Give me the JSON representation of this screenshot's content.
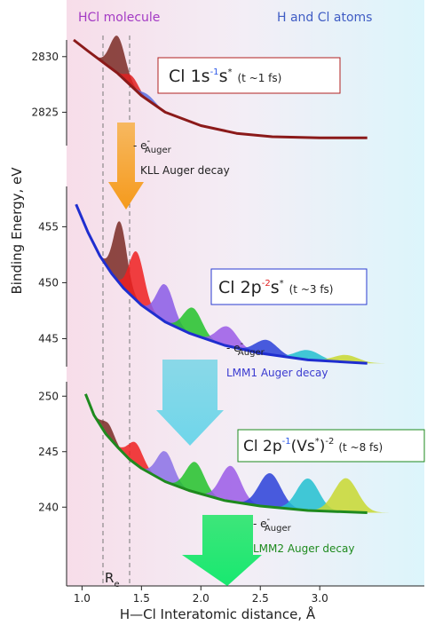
{
  "header": {
    "left_region": "HCl molecule",
    "right_region": "H and Cl atoms"
  },
  "chart_data": [
    {
      "type": "line",
      "xlim": [
        0.87,
        3.88
      ],
      "ylim": [
        2822,
        2831.5
      ],
      "yticks": [
        2825,
        2830
      ],
      "series": [
        {
          "color": "#8b1a1a",
          "x": [
            0.93,
            1.05,
            1.2,
            1.3,
            1.4,
            1.5,
            1.7,
            2.0,
            2.3,
            2.6,
            3.0,
            3.4
          ],
          "values": [
            2831.5,
            2830.5,
            2829.3,
            2828.5,
            2827.5,
            2826.5,
            2825.0,
            2823.8,
            2823.1,
            2822.8,
            2822.7,
            2822.7
          ]
        }
      ],
      "state": [
        "Cl 1s",
        "-1",
        "s",
        "*",
        "(t ~1 fs)"
      ],
      "auger": [
        "- e",
        "-",
        "Auger",
        "KLL Auger decay"
      ]
    },
    {
      "type": "line",
      "xlim": [
        0.87,
        3.88
      ],
      "ylim": [
        442.5,
        458.6
      ],
      "yticks": [
        445,
        450,
        455
      ],
      "ylabel": "Binding Energy, eV",
      "series": [
        {
          "color": "#1f2ecf",
          "x": [
            0.95,
            1.05,
            1.15,
            1.25,
            1.35,
            1.5,
            1.7,
            1.9,
            2.2,
            2.5,
            2.9,
            3.4
          ],
          "values": [
            457.0,
            454.5,
            452.4,
            450.8,
            449.5,
            448.0,
            446.5,
            445.5,
            444.4,
            443.7,
            443.1,
            442.8
          ]
        }
      ],
      "state": [
        "Cl 2p",
        "-2",
        "s",
        "*",
        "(t ~3 fs)"
      ],
      "auger": [
        "- e",
        "-",
        "Auger",
        "LMM1 Auger decay"
      ]
    },
    {
      "type": "line",
      "xlim": [
        0.87,
        3.88
      ],
      "ylim": [
        232.9,
        251.3
      ],
      "yticks": [
        240,
        245,
        250
      ],
      "xticks": [
        {
          "value": 1,
          "label": "1.0"
        },
        {
          "value": 1.5,
          "label": "1.5"
        },
        {
          "value": 2,
          "label": "2.0"
        },
        {
          "value": 2.5,
          "label": "2.5"
        },
        {
          "value": 3,
          "label": "3.0"
        }
      ],
      "xlabel": "H—Cl Interatomic distance, Å",
      "re_label": [
        "R",
        "e"
      ],
      "series": [
        {
          "color": "#1e8a1e",
          "x": [
            1.03,
            1.1,
            1.2,
            1.3,
            1.4,
            1.5,
            1.7,
            1.9,
            2.2,
            2.5,
            2.9,
            3.4
          ],
          "values": [
            250.2,
            248.3,
            246.6,
            245.4,
            244.3,
            243.5,
            242.3,
            241.5,
            240.6,
            240.1,
            239.7,
            239.5
          ]
        }
      ],
      "state": [
        "Cl 2p",
        "-1",
        "(Vs",
        "*",
        ")",
        "-2",
        "(t ~8 fs)"
      ],
      "auger": [
        "- e",
        "-",
        "Auger",
        "LMM2 Auger decay"
      ]
    }
  ]
}
